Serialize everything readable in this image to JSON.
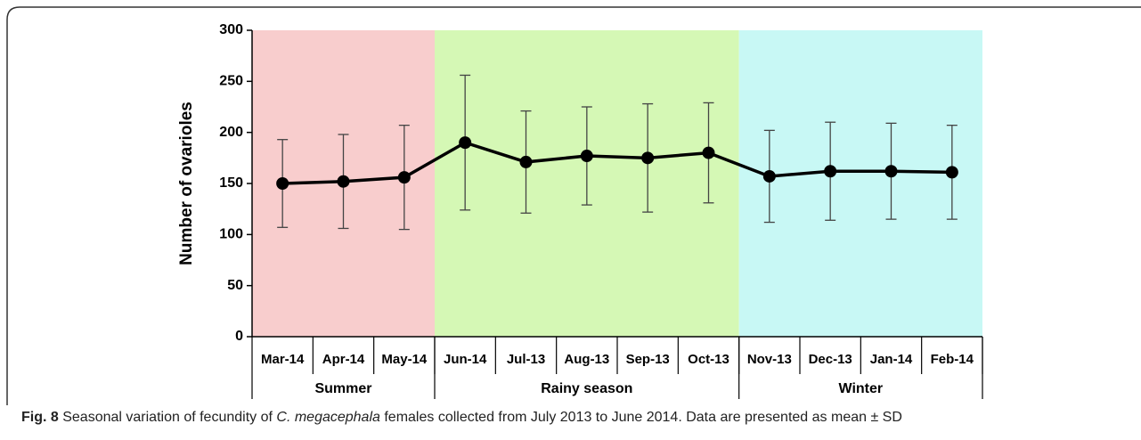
{
  "chart_data": {
    "type": "line",
    "y_label": "Number of ovarioles",
    "categories": [
      "Mar-14",
      "Apr-14",
      "May-14",
      "Jun-14",
      "Jul-13",
      "Aug-13",
      "Sep-13",
      "Oct-13",
      "Nov-13",
      "Dec-13",
      "Jan-14",
      "Feb-14"
    ],
    "series": [
      {
        "color": "#000000",
        "values": [
          150,
          152,
          156,
          190,
          171,
          177,
          175,
          180,
          157,
          162,
          162,
          161
        ],
        "errors": [
          43,
          46,
          51,
          66,
          50,
          48,
          53,
          49,
          45,
          48,
          47,
          46
        ]
      }
    ],
    "ylim": [
      0,
      300
    ],
    "yticks": [
      0,
      50,
      100,
      150,
      200,
      250,
      300
    ],
    "seasons": [
      {
        "name": "Summer",
        "color": "#f8cdcd",
        "categories": [
          "Mar-14",
          "Apr-14",
          "May-14"
        ]
      },
      {
        "name": "Rainy season",
        "color": "#d5f8b5",
        "categories": [
          "Jun-14",
          "Jul-13",
          "Aug-13",
          "Sep-13",
          "Oct-13"
        ]
      },
      {
        "name": "Winter",
        "color": "#c8f8f5",
        "categories": [
          "Nov-13",
          "Dec-13",
          "Jan-14",
          "Feb-14"
        ]
      }
    ]
  },
  "caption": {
    "label": "Fig. 8",
    "text1": "Seasonal variation of fecundity of",
    "species": "C. megacephala",
    "text2": "females collected from July 2013 to June 2014. Data are presented as mean ± SD"
  }
}
